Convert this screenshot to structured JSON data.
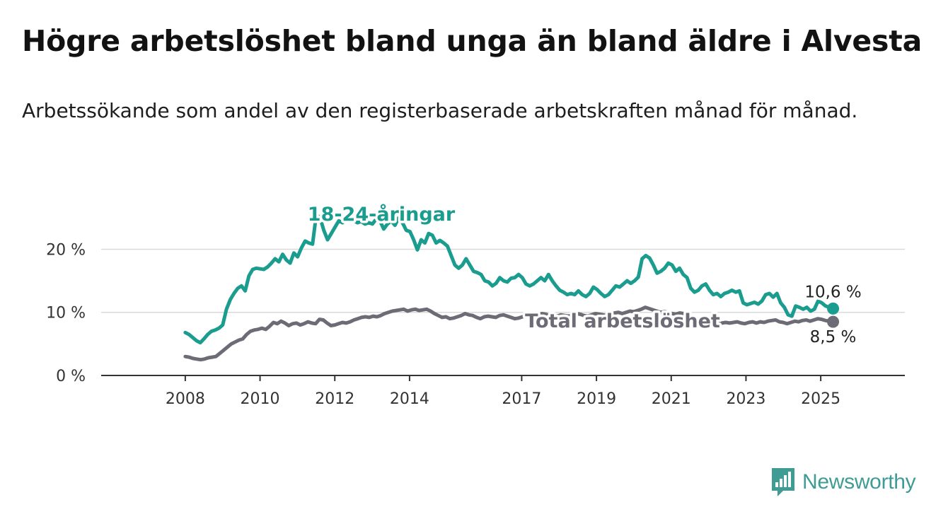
{
  "title": "Högre arbetslöshet bland unga än bland äldre i Alvesta",
  "subtitle": "Arbetssökande som andel av den registerbaserade arbetskraften månad för månad.",
  "brand": {
    "name": "Newsworthy",
    "icon": "newsworthy-logo-icon",
    "color": "#3f9c95"
  },
  "chart_data": {
    "type": "line",
    "title": "",
    "xlabel": "",
    "ylabel": "",
    "x_domain": [
      2008.0,
      2025.33
    ],
    "xlim": [
      2005.75,
      2027.25
    ],
    "ylim": [
      0,
      27
    ],
    "grid": true,
    "x_ticks": [
      {
        "value": 2008,
        "label": "2008"
      },
      {
        "value": 2010,
        "label": "2010"
      },
      {
        "value": 2012,
        "label": "2012"
      },
      {
        "value": 2014,
        "label": "2014"
      },
      {
        "value": 2017,
        "label": "2017"
      },
      {
        "value": 2019,
        "label": "2019"
      },
      {
        "value": 2021,
        "label": "2021"
      },
      {
        "value": 2023,
        "label": "2023"
      },
      {
        "value": 2025,
        "label": "2025"
      }
    ],
    "y_ticks": [
      {
        "value": 0,
        "label": "0 %"
      },
      {
        "value": 10,
        "label": "10 %"
      },
      {
        "value": 20,
        "label": "20 %"
      }
    ],
    "series": [
      {
        "name": "18-24-åringar",
        "color": "#1a9c8e",
        "end_label": "10,6 %",
        "values": [
          6.8,
          6.5,
          6.0,
          5.5,
          5.2,
          5.8,
          6.5,
          7.0,
          7.2,
          7.5,
          8.0,
          10.5,
          12.0,
          13.0,
          13.8,
          14.2,
          13.4,
          15.8,
          16.8,
          17.0,
          16.9,
          16.8,
          17.2,
          17.8,
          18.5,
          18.0,
          19.2,
          18.3,
          17.8,
          19.4,
          18.8,
          20.2,
          21.3,
          21.0,
          20.8,
          25.5,
          25.0,
          23.0,
          21.5,
          22.5,
          23.5,
          24.5,
          24.2,
          25.0,
          25.8,
          24.5,
          24.2,
          24.4,
          24.0,
          24.2,
          24.0,
          24.8,
          24.5,
          23.2,
          24.0,
          24.5,
          23.8,
          25.0,
          24.2,
          23.0,
          22.8,
          21.5,
          19.9,
          21.5,
          21.0,
          22.5,
          22.2,
          21.0,
          21.4,
          21.0,
          20.5,
          19.0,
          17.5,
          17.0,
          17.5,
          18.5,
          17.5,
          16.5,
          16.3,
          16.0,
          15.0,
          14.8,
          14.2,
          14.6,
          15.5,
          15.0,
          14.8,
          15.4,
          15.5,
          16.0,
          15.5,
          14.5,
          14.2,
          14.5,
          15.0,
          15.5,
          15.0,
          16.0,
          15.0,
          14.2,
          13.5,
          13.2,
          12.8,
          13.0,
          12.8,
          13.4,
          12.8,
          12.5,
          13.0,
          14.0,
          13.6,
          13.0,
          12.5,
          12.8,
          13.5,
          14.2,
          14.0,
          14.5,
          15.0,
          14.6,
          15.0,
          15.6,
          18.5,
          19.0,
          18.6,
          17.5,
          16.2,
          16.5,
          17.0,
          17.8,
          17.5,
          16.5,
          17.0,
          16.0,
          15.5,
          13.8,
          13.2,
          13.5,
          14.2,
          14.5,
          13.5,
          12.8,
          13.0,
          12.5,
          13.0,
          13.2,
          13.5,
          13.2,
          13.4,
          11.5,
          11.2,
          11.4,
          11.6,
          11.3,
          11.8,
          12.8,
          13.0,
          12.4,
          13.0,
          11.5,
          10.8,
          9.6,
          9.4,
          11.0,
          10.8,
          10.5,
          10.8,
          10.2,
          10.5,
          11.8,
          11.5,
          11.0,
          10.8,
          10.6
        ]
      },
      {
        "name": "Total arbetslöshet",
        "color": "#6d6b75",
        "end_label": "8,5 %",
        "values": [
          3.0,
          2.9,
          2.7,
          2.6,
          2.5,
          2.6,
          2.8,
          2.9,
          3.0,
          3.5,
          4.0,
          4.5,
          5.0,
          5.3,
          5.6,
          5.8,
          6.5,
          7.0,
          7.2,
          7.3,
          7.5,
          7.3,
          7.8,
          8.4,
          8.2,
          8.6,
          8.3,
          7.9,
          8.2,
          8.3,
          8.0,
          8.2,
          8.5,
          8.3,
          8.2,
          8.9,
          8.8,
          8.3,
          7.9,
          8.0,
          8.2,
          8.4,
          8.3,
          8.5,
          8.8,
          9.0,
          9.2,
          9.3,
          9.2,
          9.4,
          9.3,
          9.5,
          9.8,
          10.0,
          10.2,
          10.3,
          10.4,
          10.5,
          10.2,
          10.4,
          10.5,
          10.3,
          10.4,
          10.5,
          10.2,
          9.8,
          9.5,
          9.2,
          9.3,
          9.0,
          9.1,
          9.3,
          9.5,
          9.8,
          9.6,
          9.5,
          9.2,
          9.0,
          9.3,
          9.4,
          9.3,
          9.2,
          9.5,
          9.6,
          9.4,
          9.2,
          9.0,
          9.1,
          9.3,
          9.5,
          9.4,
          9.3,
          9.5,
          9.8,
          9.7,
          9.5,
          9.3,
          9.4,
          9.6,
          9.5,
          9.4,
          9.6,
          9.8,
          9.7,
          9.5,
          9.4,
          9.6,
          9.8,
          9.7,
          9.6,
          9.5,
          9.7,
          9.9,
          10.0,
          9.8,
          10.0,
          10.2,
          10.1,
          10.3,
          10.5,
          10.8,
          10.6,
          10.4,
          10.2,
          10.0,
          10.1,
          10.0,
          9.8,
          9.7,
          9.9,
          9.8,
          9.6,
          9.4,
          9.0,
          8.8,
          8.6,
          8.4,
          8.2,
          8.3,
          8.2,
          8.3,
          8.4,
          8.3,
          8.4,
          8.5,
          8.3,
          8.2,
          8.4,
          8.5,
          8.3,
          8.5,
          8.4,
          8.6,
          8.7,
          8.8,
          8.5,
          8.4,
          8.2,
          8.4,
          8.6,
          8.5,
          8.7,
          8.8,
          8.6,
          8.8,
          9.0,
          8.9,
          8.7,
          8.6,
          8.5
        ]
      }
    ]
  }
}
